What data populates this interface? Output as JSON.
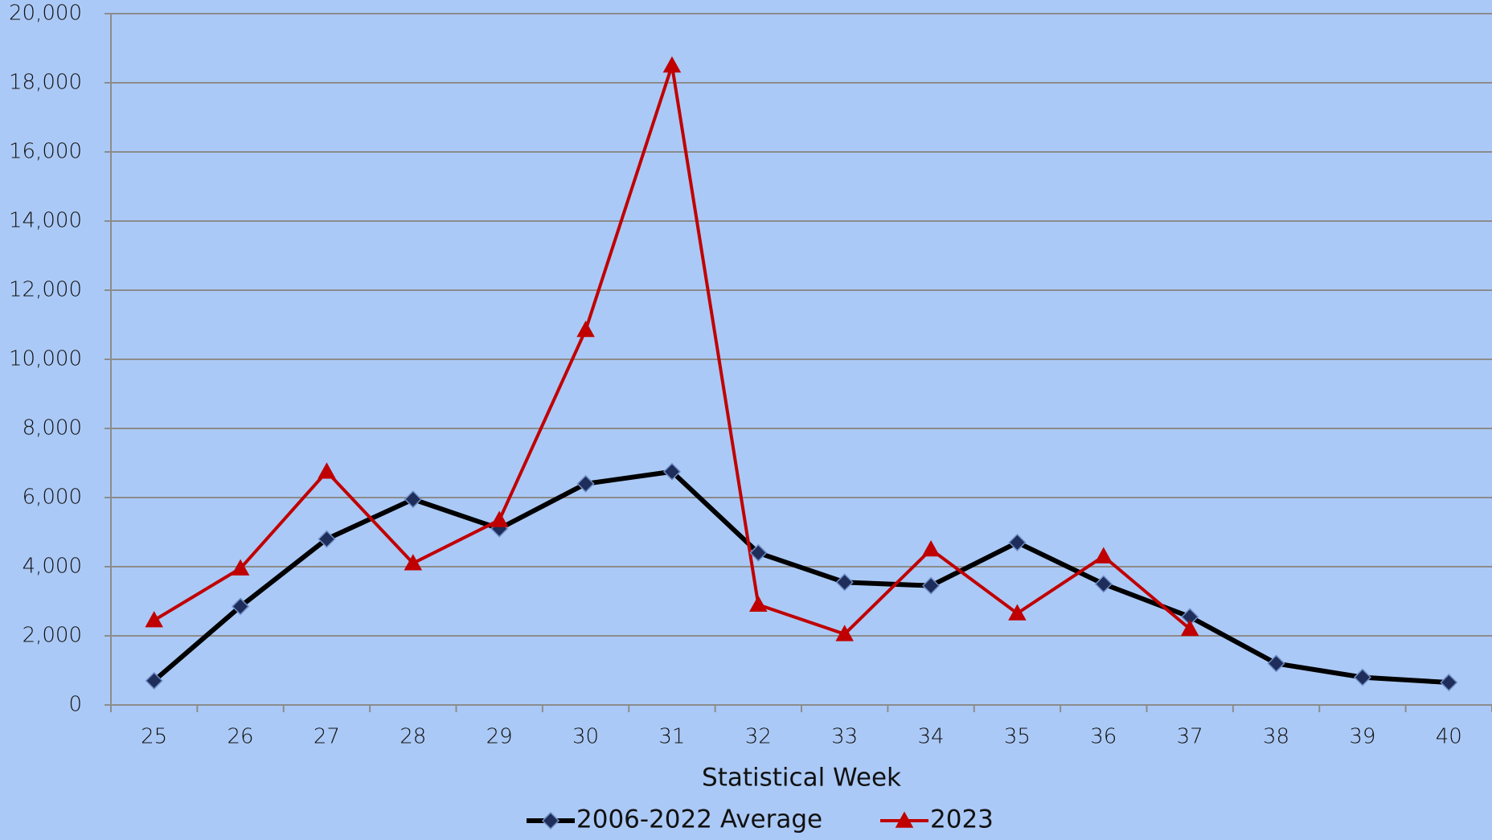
{
  "chart_data": {
    "type": "line",
    "x_label": "Statistical Week",
    "categories": [
      "25",
      "26",
      "27",
      "28",
      "29",
      "30",
      "31",
      "32",
      "33",
      "34",
      "35",
      "36",
      "37",
      "38",
      "39",
      "40"
    ],
    "series": [
      {
        "name": "2006-2022 Average",
        "color": "#000000",
        "marker": "diamond",
        "marker_color": "#1f2d5a",
        "values": [
          700,
          2850,
          4800,
          5950,
          5100,
          6400,
          6750,
          4400,
          3550,
          3450,
          4700,
          3500,
          2550,
          1200,
          800,
          650
        ]
      },
      {
        "name": "2023",
        "color": "#c00000",
        "marker": "triangle",
        "marker_color": "#c00000",
        "values": [
          2450,
          3950,
          6750,
          4100,
          5350,
          10850,
          18500,
          2900,
          2050,
          4500,
          2650,
          4300,
          2200,
          null,
          null,
          null
        ]
      }
    ],
    "ylim": [
      0,
      20000
    ],
    "yticks": [
      0,
      {
        "value": 2000,
        "label": "2,000"
      },
      {
        "value": 4000,
        "label": "4,000"
      },
      {
        "value": 6000,
        "label": "6,000"
      },
      {
        "value": 8000,
        "label": "8,000"
      },
      {
        "value": 10000,
        "label": "10,000"
      },
      {
        "value": 12000,
        "label": "12,000"
      },
      {
        "value": 14000,
        "label": "14,000"
      },
      {
        "value": 16000,
        "label": "16,000"
      },
      {
        "value": 18000,
        "label": "18,000"
      },
      {
        "value": 20000,
        "label": "20,000"
      }
    ],
    "grid": true,
    "legend": "bottom"
  }
}
